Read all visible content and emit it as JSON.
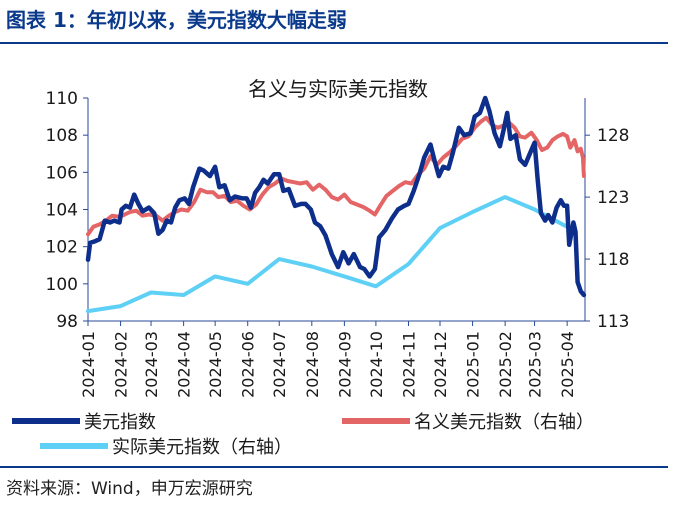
{
  "figure": {
    "title": "图表 1：年初以来，美元指数大幅走弱",
    "source": "资料来源：Wind，申万宏源研究"
  },
  "colors": {
    "dxy": "#0d2e8a",
    "nominal": "#e46565",
    "real": "#5fd0f5",
    "axis": "#2b4a9b",
    "text": "#1a1a1a",
    "rule": "#0b3a8c"
  },
  "chart_data": {
    "type": "line",
    "title": "名义与实际美元指数",
    "x_axis": {
      "type": "date",
      "min": "2024-01-01",
      "max": "2025-04-18",
      "ticks": [
        "2024-01",
        "2024-02",
        "2024-03",
        "2024-04",
        "2024-05",
        "2024-06",
        "2024-07",
        "2024-08",
        "2024-09",
        "2024-10",
        "2024-11",
        "2024-12",
        "2025-01",
        "2025-02",
        "2025-03",
        "2025-04"
      ]
    },
    "y_left": {
      "min": 98,
      "max": 110,
      "ticks": [
        98,
        100,
        102,
        104,
        106,
        108,
        110
      ]
    },
    "y_right": {
      "min": 113,
      "max": 131,
      "ticks": [
        113,
        118,
        123,
        128
      ]
    },
    "grid": false,
    "legend": {
      "placement": "bottom",
      "entries": [
        "美元指数",
        "名义美元指数（右轴）",
        "实际美元指数（右轴）"
      ]
    },
    "series": [
      {
        "name": "美元指数",
        "axis": "left",
        "points": [
          [
            "2024-01-01",
            101.3
          ],
          [
            "2024-01-03",
            102.2
          ],
          [
            "2024-01-08",
            102.3
          ],
          [
            "2024-01-12",
            102.4
          ],
          [
            "2024-01-17",
            103.4
          ],
          [
            "2024-01-22",
            103.3
          ],
          [
            "2024-01-26",
            103.4
          ],
          [
            "2024-01-31",
            103.3
          ],
          [
            "2024-02-02",
            104.0
          ],
          [
            "2024-02-06",
            104.2
          ],
          [
            "2024-02-10",
            104.1
          ],
          [
            "2024-02-14",
            104.8
          ],
          [
            "2024-02-18",
            104.3
          ],
          [
            "2024-02-22",
            103.9
          ],
          [
            "2024-02-28",
            104.1
          ],
          [
            "2024-03-04",
            103.8
          ],
          [
            "2024-03-08",
            102.7
          ],
          [
            "2024-03-12",
            102.9
          ],
          [
            "2024-03-16",
            103.4
          ],
          [
            "2024-03-20",
            103.3
          ],
          [
            "2024-03-24",
            104.1
          ],
          [
            "2024-03-28",
            104.5
          ],
          [
            "2024-04-02",
            104.6
          ],
          [
            "2024-04-06",
            104.3
          ],
          [
            "2024-04-10",
            105.2
          ],
          [
            "2024-04-16",
            106.2
          ],
          [
            "2024-04-20",
            106.1
          ],
          [
            "2024-04-26",
            105.8
          ],
          [
            "2024-05-01",
            106.3
          ],
          [
            "2024-05-05",
            105.2
          ],
          [
            "2024-05-10",
            105.3
          ],
          [
            "2024-05-15",
            104.5
          ],
          [
            "2024-05-20",
            104.7
          ],
          [
            "2024-05-27",
            104.6
          ],
          [
            "2024-05-31",
            104.6
          ],
          [
            "2024-06-04",
            104.1
          ],
          [
            "2024-06-08",
            104.9
          ],
          [
            "2024-06-12",
            105.2
          ],
          [
            "2024-06-16",
            105.6
          ],
          [
            "2024-06-20",
            105.4
          ],
          [
            "2024-06-26",
            105.9
          ],
          [
            "2024-07-01",
            105.9
          ],
          [
            "2024-07-05",
            105.0
          ],
          [
            "2024-07-10",
            105.1
          ],
          [
            "2024-07-16",
            104.2
          ],
          [
            "2024-07-22",
            104.3
          ],
          [
            "2024-07-26",
            104.3
          ],
          [
            "2024-07-31",
            104.0
          ],
          [
            "2024-08-04",
            103.3
          ],
          [
            "2024-08-09",
            103.1
          ],
          [
            "2024-08-14",
            102.6
          ],
          [
            "2024-08-20",
            101.6
          ],
          [
            "2024-08-26",
            100.9
          ],
          [
            "2024-08-31",
            101.7
          ],
          [
            "2024-09-05",
            101.1
          ],
          [
            "2024-09-10",
            101.6
          ],
          [
            "2024-09-16",
            100.9
          ],
          [
            "2024-09-20",
            100.8
          ],
          [
            "2024-09-25",
            100.4
          ],
          [
            "2024-09-30",
            100.8
          ],
          [
            "2024-10-04",
            102.5
          ],
          [
            "2024-10-10",
            102.9
          ],
          [
            "2024-10-16",
            103.5
          ],
          [
            "2024-10-22",
            104.0
          ],
          [
            "2024-10-28",
            104.2
          ],
          [
            "2024-11-01",
            104.3
          ],
          [
            "2024-11-06",
            105.0
          ],
          [
            "2024-11-12",
            106.0
          ],
          [
            "2024-11-16",
            106.8
          ],
          [
            "2024-11-22",
            107.5
          ],
          [
            "2024-11-26",
            106.6
          ],
          [
            "2024-11-30",
            105.8
          ],
          [
            "2024-12-04",
            106.3
          ],
          [
            "2024-12-09",
            106.2
          ],
          [
            "2024-12-13",
            107.0
          ],
          [
            "2024-12-19",
            108.4
          ],
          [
            "2024-12-24",
            108.0
          ],
          [
            "2024-12-30",
            108.1
          ],
          [
            "2025-01-03",
            109.0
          ],
          [
            "2025-01-08",
            109.2
          ],
          [
            "2025-01-13",
            110.0
          ],
          [
            "2025-01-17",
            109.3
          ],
          [
            "2025-01-22",
            108.1
          ],
          [
            "2025-01-27",
            107.4
          ],
          [
            "2025-01-31",
            108.4
          ],
          [
            "2025-02-03",
            109.2
          ],
          [
            "2025-02-06",
            107.8
          ],
          [
            "2025-02-11",
            108.0
          ],
          [
            "2025-02-15",
            106.7
          ],
          [
            "2025-02-20",
            106.4
          ],
          [
            "2025-02-26",
            107.2
          ],
          [
            "2025-03-01",
            107.6
          ],
          [
            "2025-03-04",
            105.6
          ],
          [
            "2025-03-07",
            103.8
          ],
          [
            "2025-03-11",
            103.4
          ],
          [
            "2025-03-14",
            103.7
          ],
          [
            "2025-03-18",
            103.3
          ],
          [
            "2025-03-22",
            104.1
          ],
          [
            "2025-03-26",
            104.5
          ],
          [
            "2025-03-29",
            104.2
          ],
          [
            "2025-04-01",
            104.2
          ],
          [
            "2025-04-03",
            102.1
          ],
          [
            "2025-04-07",
            103.3
          ],
          [
            "2025-04-09",
            102.8
          ],
          [
            "2025-04-11",
            100.1
          ],
          [
            "2025-04-14",
            99.6
          ],
          [
            "2025-04-17",
            99.4
          ]
        ]
      },
      {
        "name": "名义美元指数（右轴）",
        "axis": "right",
        "points": [
          [
            "2024-01-01",
            120.0
          ],
          [
            "2024-01-06",
            120.6
          ],
          [
            "2024-01-12",
            120.8
          ],
          [
            "2024-01-18",
            121.1
          ],
          [
            "2024-01-24",
            121.5
          ],
          [
            "2024-01-31",
            121.4
          ],
          [
            "2024-02-05",
            121.6
          ],
          [
            "2024-02-10",
            121.8
          ],
          [
            "2024-02-16",
            121.9
          ],
          [
            "2024-02-22",
            121.5
          ],
          [
            "2024-02-28",
            121.6
          ],
          [
            "2024-03-06",
            121.5
          ],
          [
            "2024-03-12",
            121.1
          ],
          [
            "2024-03-18",
            121.5
          ],
          [
            "2024-03-24",
            121.8
          ],
          [
            "2024-03-30",
            122.0
          ],
          [
            "2024-04-05",
            121.9
          ],
          [
            "2024-04-11",
            122.6
          ],
          [
            "2024-04-17",
            123.6
          ],
          [
            "2024-04-23",
            123.4
          ],
          [
            "2024-04-29",
            123.4
          ],
          [
            "2024-05-04",
            123.0
          ],
          [
            "2024-05-10",
            123.1
          ],
          [
            "2024-05-16",
            122.6
          ],
          [
            "2024-05-22",
            122.7
          ],
          [
            "2024-05-28",
            122.3
          ],
          [
            "2024-06-03",
            122.0
          ],
          [
            "2024-06-09",
            122.4
          ],
          [
            "2024-06-15",
            123.2
          ],
          [
            "2024-06-21",
            123.8
          ],
          [
            "2024-06-27",
            124.1
          ],
          [
            "2024-07-03",
            124.5
          ],
          [
            "2024-07-09",
            124.3
          ],
          [
            "2024-07-15",
            124.2
          ],
          [
            "2024-07-21",
            124.1
          ],
          [
            "2024-07-27",
            124.2
          ],
          [
            "2024-08-02",
            123.6
          ],
          [
            "2024-08-08",
            124.0
          ],
          [
            "2024-08-14",
            123.6
          ],
          [
            "2024-08-20",
            123.0
          ],
          [
            "2024-08-26",
            122.8
          ],
          [
            "2024-09-01",
            123.2
          ],
          [
            "2024-09-07",
            122.6
          ],
          [
            "2024-09-13",
            122.4
          ],
          [
            "2024-09-19",
            122.2
          ],
          [
            "2024-09-25",
            121.9
          ],
          [
            "2024-09-30",
            121.6
          ],
          [
            "2024-10-05",
            122.3
          ],
          [
            "2024-10-11",
            123.1
          ],
          [
            "2024-10-17",
            123.5
          ],
          [
            "2024-10-23",
            123.9
          ],
          [
            "2024-10-29",
            124.2
          ],
          [
            "2024-11-04",
            124.1
          ],
          [
            "2024-11-10",
            124.8
          ],
          [
            "2024-11-16",
            125.3
          ],
          [
            "2024-11-22",
            126.3
          ],
          [
            "2024-11-28",
            125.6
          ],
          [
            "2024-12-04",
            126.2
          ],
          [
            "2024-12-10",
            126.6
          ],
          [
            "2024-12-16",
            127.1
          ],
          [
            "2024-12-22",
            127.7
          ],
          [
            "2024-12-28",
            127.9
          ],
          [
            "2025-01-03",
            128.6
          ],
          [
            "2025-01-09",
            129.1
          ],
          [
            "2025-01-14",
            129.4
          ],
          [
            "2025-01-20",
            128.8
          ],
          [
            "2025-01-25",
            128.6
          ],
          [
            "2025-01-31",
            128.8
          ],
          [
            "2025-02-05",
            129.0
          ],
          [
            "2025-02-10",
            128.6
          ],
          [
            "2025-02-15",
            127.9
          ],
          [
            "2025-02-20",
            127.8
          ],
          [
            "2025-02-26",
            128.2
          ],
          [
            "2025-03-03",
            127.6
          ],
          [
            "2025-03-08",
            126.8
          ],
          [
            "2025-03-13",
            127.0
          ],
          [
            "2025-03-18",
            127.6
          ],
          [
            "2025-03-23",
            127.9
          ],
          [
            "2025-03-28",
            128.1
          ],
          [
            "2025-04-01",
            127.9
          ],
          [
            "2025-04-04",
            127.0
          ],
          [
            "2025-04-08",
            127.6
          ],
          [
            "2025-04-11",
            126.7
          ],
          [
            "2025-04-14",
            126.9
          ],
          [
            "2025-04-16",
            126.2
          ],
          [
            "2025-04-17",
            124.7
          ]
        ]
      },
      {
        "name": "实际美元指数（右轴）",
        "axis": "right",
        "points": [
          [
            "2024-01-01",
            113.8
          ],
          [
            "2024-02-01",
            114.2
          ],
          [
            "2024-03-01",
            115.3
          ],
          [
            "2024-04-01",
            115.1
          ],
          [
            "2024-05-01",
            116.6
          ],
          [
            "2024-06-01",
            116.0
          ],
          [
            "2024-07-01",
            118.0
          ],
          [
            "2024-08-01",
            117.4
          ],
          [
            "2024-09-01",
            116.6
          ],
          [
            "2024-10-01",
            115.8
          ],
          [
            "2024-11-01",
            117.6
          ],
          [
            "2024-12-01",
            120.5
          ],
          [
            "2025-01-01",
            121.8
          ],
          [
            "2025-02-01",
            123.0
          ],
          [
            "2025-03-01",
            122.0
          ],
          [
            "2025-04-01",
            120.6
          ]
        ]
      }
    ]
  }
}
